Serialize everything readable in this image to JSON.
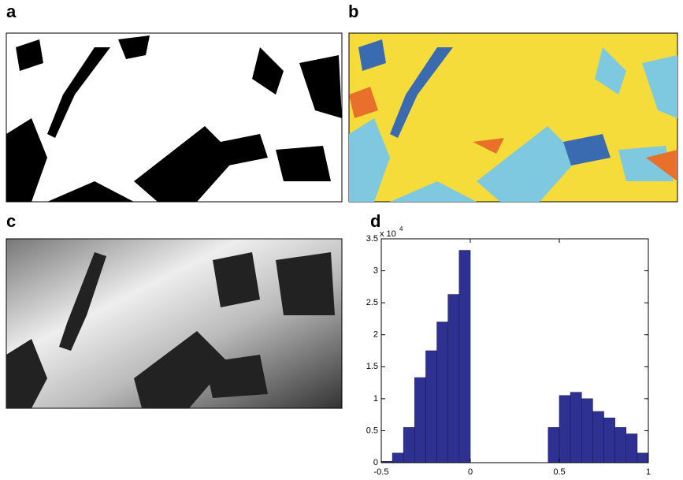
{
  "panels": {
    "a": "a",
    "b": "b",
    "c": "c",
    "d": "d"
  },
  "chart_data": {
    "type": "histogram",
    "bins": [
      -0.5,
      -0.4375,
      -0.375,
      -0.3125,
      -0.25,
      -0.1875,
      -0.125,
      -0.0625,
      0,
      0.0625,
      0.125,
      0.1875,
      0.25,
      0.3125,
      0.375,
      0.4375,
      0.5,
      0.5625,
      0.625,
      0.6875,
      0.75,
      0.8125,
      0.875,
      0.9375,
      1
    ],
    "values": [
      0.02,
      0.15,
      0.55,
      1.33,
      1.75,
      2.2,
      2.63,
      3.32,
      0,
      0,
      0,
      0,
      0,
      0,
      0,
      0.55,
      1.05,
      1.1,
      1.0,
      0.8,
      0.7,
      0.55,
      0.45,
      0.15
    ],
    "color": "#2e3192",
    "xlim": [
      -0.5,
      1
    ],
    "xticks": [
      -0.5,
      0,
      0.5,
      1
    ],
    "ylim": [
      0,
      3.5
    ],
    "yticks": [
      0,
      0.5,
      1,
      1.5,
      2,
      2.5,
      3,
      3.5
    ],
    "y_scale_label": {
      "base": "x 10",
      "exponent": "4"
    }
  }
}
